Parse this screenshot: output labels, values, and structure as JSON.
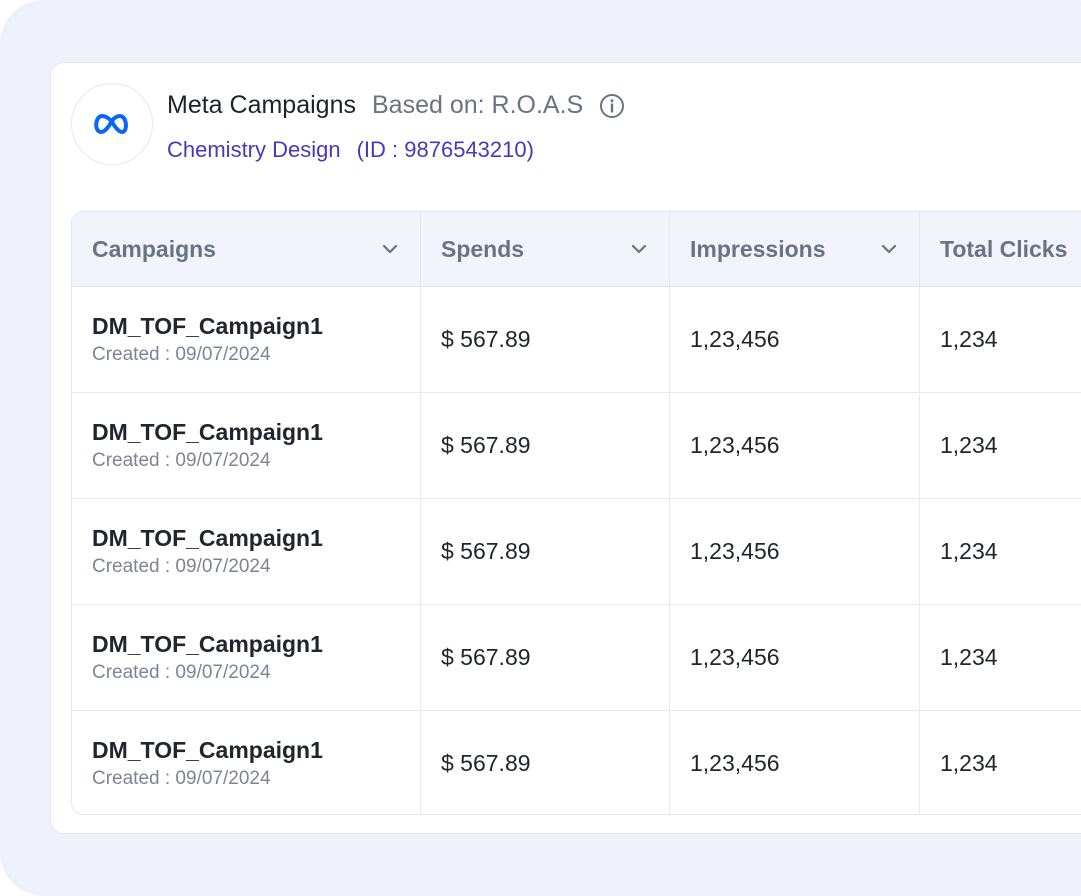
{
  "header": {
    "title": "Meta Campaigns",
    "based_on": "Based on: R.O.A.S",
    "account_name": "Chemistry Design",
    "account_id": "(ID : 9876543210)",
    "brand_color": "#0866ff",
    "accent_color": "#4b38b8"
  },
  "table": {
    "columns": [
      {
        "label": "Campaigns"
      },
      {
        "label": "Spends"
      },
      {
        "label": "Impressions"
      },
      {
        "label": "Total Clicks"
      }
    ],
    "rows": [
      {
        "name": "DM_TOF_Campaign1",
        "created": "Created : 09/07/2024",
        "spends": "$ 567.89",
        "impressions": "1,23,456",
        "clicks": "1,234"
      },
      {
        "name": "DM_TOF_Campaign1",
        "created": "Created : 09/07/2024",
        "spends": "$ 567.89",
        "impressions": "1,23,456",
        "clicks": "1,234"
      },
      {
        "name": "DM_TOF_Campaign1",
        "created": "Created : 09/07/2024",
        "spends": "$ 567.89",
        "impressions": "1,23,456",
        "clicks": "1,234"
      },
      {
        "name": "DM_TOF_Campaign1",
        "created": "Created : 09/07/2024",
        "spends": "$ 567.89",
        "impressions": "1,23,456",
        "clicks": "1,234"
      },
      {
        "name": "DM_TOF_Campaign1",
        "created": "Created : 09/07/2024",
        "spends": "$ 567.89",
        "impressions": "1,23,456",
        "clicks": "1,234"
      }
    ]
  },
  "icons": {
    "logo": "meta-logo-icon",
    "info": "info-icon",
    "sort": "chevron-down-icon"
  }
}
